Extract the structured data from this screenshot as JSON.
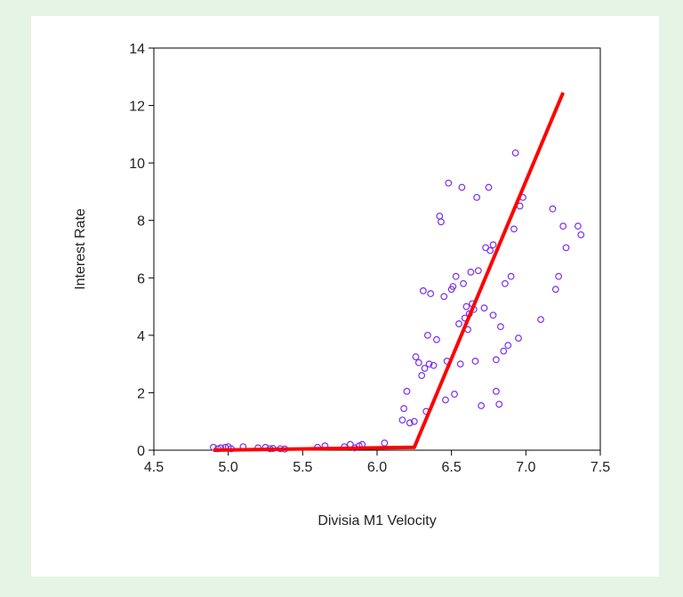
{
  "chart_data": {
    "type": "scatter",
    "xlabel": "Divisia M1 Velocity",
    "ylabel": "Interest Rate",
    "xlim": [
      4.5,
      7.5
    ],
    "ylim": [
      0,
      14
    ],
    "xticks": [
      "4.5",
      "5.0",
      "5.5",
      "6.0",
      "6.5",
      "7.0",
      "7.5"
    ],
    "yticks": [
      "0",
      "2",
      "4",
      "6",
      "8",
      "10",
      "12",
      "14"
    ],
    "grid": false,
    "point_color": "#7a2ff0",
    "line_color": "#ff0000",
    "series": [
      {
        "type": "scatter",
        "x": [
          4.9,
          4.93,
          4.95,
          4.98,
          5.0,
          5.02,
          5.1,
          5.2,
          5.25,
          5.28,
          5.3,
          5.35,
          5.38,
          5.6,
          5.65,
          5.78,
          5.82,
          5.85,
          5.88,
          5.9,
          6.05,
          6.17,
          6.18,
          6.2,
          6.22,
          6.25,
          6.26,
          6.28,
          6.3,
          6.31,
          6.32,
          6.33,
          6.34,
          6.35,
          6.36,
          6.38,
          6.4,
          6.42,
          6.43,
          6.45,
          6.46,
          6.47,
          6.48,
          6.5,
          6.51,
          6.52,
          6.53,
          6.55,
          6.56,
          6.57,
          6.58,
          6.59,
          6.6,
          6.61,
          6.62,
          6.63,
          6.64,
          6.65,
          6.66,
          6.67,
          6.68,
          6.7,
          6.72,
          6.73,
          6.75,
          6.76,
          6.78,
          6.78,
          6.8,
          6.8,
          6.82,
          6.83,
          6.85,
          6.86,
          6.88,
          6.9,
          6.92,
          6.93,
          6.95,
          6.96,
          6.98,
          7.1,
          7.18,
          7.2,
          7.22,
          7.25,
          7.27,
          7.35,
          7.37
        ],
        "y": [
          0.1,
          0.05,
          0.08,
          0.1,
          0.12,
          0.05,
          0.12,
          0.08,
          0.1,
          0.05,
          0.06,
          0.05,
          0.04,
          0.1,
          0.15,
          0.12,
          0.2,
          0.08,
          0.15,
          0.2,
          0.25,
          1.05,
          1.45,
          2.05,
          0.95,
          1.0,
          3.25,
          3.05,
          2.6,
          5.55,
          2.85,
          1.35,
          4.0,
          3.0,
          5.45,
          2.95,
          3.85,
          8.15,
          7.95,
          5.35,
          1.75,
          3.1,
          9.3,
          5.6,
          5.7,
          1.95,
          6.05,
          4.4,
          3.0,
          9.15,
          5.8,
          4.6,
          5.0,
          4.2,
          4.75,
          6.2,
          5.1,
          4.9,
          3.1,
          8.8,
          6.25,
          1.55,
          4.95,
          7.05,
          9.15,
          6.95,
          4.7,
          7.15,
          3.15,
          2.05,
          1.6,
          4.3,
          3.45,
          5.8,
          3.65,
          6.05,
          7.7,
          10.35,
          3.9,
          8.5,
          8.8,
          4.55,
          8.4,
          5.6,
          6.05,
          7.8,
          7.05,
          7.8,
          7.5
        ]
      },
      {
        "type": "line",
        "x": [
          4.9,
          6.25,
          7.25
        ],
        "y": [
          0.0,
          0.1,
          12.45
        ]
      }
    ]
  }
}
